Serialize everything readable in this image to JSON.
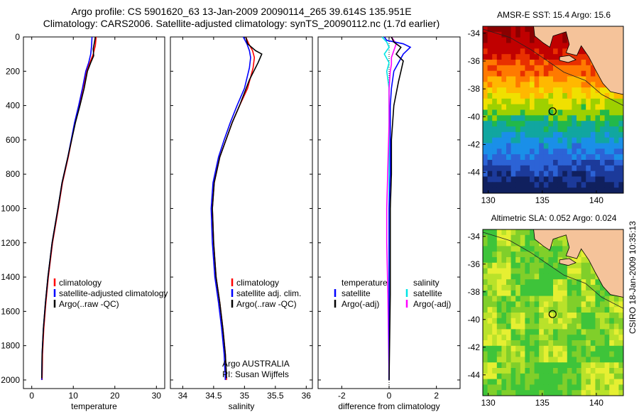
{
  "title_line1": "Argo profile: CS 5901620_63 13-Jan-2009 20090114_265 39.614S 135.951E",
  "title_line2": "Climatology: CARS2006. Satellite-adjusted climatology: synTS_20090112.nc (1.7d earlier)",
  "side_note": "CSIRO 18-Jan-2009 10:35:13",
  "colors": {
    "climatology": "#ff0000",
    "satellite": "#0000ff",
    "argo": "#000000",
    "sal_satellite": "#00e5e5",
    "sal_argo": "#ff00ff"
  },
  "chart_data": [
    {
      "type": "line",
      "xlabel": "temperature",
      "ylabel": "",
      "xlim": [
        -2,
        32
      ],
      "ylim": [
        2050,
        0
      ],
      "xticks": [
        "0",
        "10",
        "20",
        "30"
      ],
      "yticks": [
        "0",
        "200",
        "400",
        "600",
        "800",
        "1000",
        "1200",
        "1400",
        "1600",
        "1800",
        "2000"
      ],
      "legend": [
        "climatology",
        "satellite-adjusted climatology",
        "Argo(..raw -QC)"
      ],
      "legend_position": "lower-middle",
      "series": [
        {
          "name": "climatology",
          "x": [
            15.5,
            15.3,
            14.8,
            14.0,
            13.2,
            12.3,
            11.4,
            10.4,
            9.6,
            8.8,
            7.4,
            6.4,
            5.0,
            4.0,
            3.4,
            2.9,
            2.6,
            2.5
          ],
          "y": [
            0,
            50,
            100,
            150,
            200,
            300,
            400,
            500,
            600,
            700,
            850,
            1000,
            1200,
            1400,
            1550,
            1700,
            1850,
            2000
          ]
        },
        {
          "name": "satellite-adjusted climatology",
          "x": [
            14.5,
            14.4,
            14.2,
            13.7,
            13.0,
            12.2,
            11.3,
            10.3,
            9.5,
            8.7,
            7.3,
            6.3,
            4.9,
            3.9,
            3.3,
            2.8,
            2.5,
            2.4
          ],
          "y": [
            0,
            50,
            100,
            150,
            200,
            300,
            400,
            500,
            600,
            700,
            850,
            1000,
            1200,
            1400,
            1550,
            1700,
            1850,
            2000
          ]
        },
        {
          "name": "Argo(..raw -QC)",
          "x": [
            15.3,
            15.1,
            14.8,
            14.9,
            14.2,
            13.4,
            12.6,
            11.6,
            10.5,
            9.6,
            8.7,
            7.3,
            6.3,
            4.9,
            3.9,
            3.3,
            2.8,
            2.5,
            2.4
          ],
          "y": [
            0,
            30,
            70,
            110,
            150,
            200,
            300,
            400,
            500,
            600,
            700,
            850,
            1000,
            1200,
            1400,
            1550,
            1700,
            1850,
            1990
          ]
        }
      ]
    },
    {
      "type": "line",
      "xlabel": "salinity",
      "xlim": [
        33.8,
        36.1
      ],
      "ylim": [
        2050,
        0
      ],
      "xticks": [
        "34",
        "34.5",
        "35",
        "35.5",
        "36"
      ],
      "legend": [
        "climatology",
        "satellite adj. clim.",
        "Argo(..raw -QC)"
      ],
      "legend_position": "lower-right",
      "annotation": [
        "Argo AUSTRALIA",
        "PI: Susan Wijffels"
      ],
      "series": [
        {
          "name": "climatology",
          "x": [
            35.02,
            35.07,
            35.13,
            35.16,
            35.14,
            35.05,
            34.92,
            34.8,
            34.7,
            34.6,
            34.51,
            34.48,
            34.5,
            34.54,
            34.6,
            34.65,
            34.69,
            34.71
          ],
          "y": [
            0,
            40,
            80,
            120,
            180,
            300,
            400,
            500,
            600,
            700,
            850,
            1000,
            1200,
            1400,
            1550,
            1700,
            1850,
            2000
          ]
        },
        {
          "name": "satellite adj. clim.",
          "x": [
            34.98,
            35.04,
            35.08,
            35.1,
            35.08,
            35.0,
            34.88,
            34.77,
            34.67,
            34.58,
            34.49,
            34.46,
            34.48,
            34.52,
            34.58,
            34.63,
            34.67,
            34.69
          ],
          "y": [
            0,
            40,
            80,
            120,
            180,
            300,
            400,
            500,
            600,
            700,
            850,
            1000,
            1200,
            1400,
            1550,
            1700,
            1850,
            2000
          ]
        },
        {
          "name": "Argo(..raw -QC)",
          "x": [
            35.02,
            35.05,
            35.18,
            35.28,
            35.22,
            35.08,
            34.92,
            34.8,
            34.7,
            34.6,
            34.51,
            34.48,
            34.5,
            34.54,
            34.6,
            34.65,
            34.69,
            34.71
          ],
          "y": [
            0,
            40,
            80,
            100,
            150,
            250,
            400,
            500,
            600,
            700,
            850,
            1000,
            1200,
            1400,
            1550,
            1700,
            1850,
            1990
          ]
        }
      ]
    },
    {
      "type": "line",
      "xlabel": "difference from climatology",
      "xlim": [
        -3,
        3
      ],
      "ylim": [
        2050,
        0
      ],
      "xticks": [
        "-2",
        "0",
        "2"
      ],
      "legend": [
        "temperature",
        "satellite",
        "Argo(-adj)",
        "salinity",
        "satellite",
        "Argo(-adj)"
      ],
      "legend_position": "lower",
      "series": [
        {
          "name": "satellite",
          "x": [
            -0.2,
            -0.1,
            0.6,
            0.9,
            0.6,
            0.4,
            0.2,
            0.1,
            0.05,
            0.05,
            0.05,
            0.0,
            0.0,
            0.0,
            0.0
          ],
          "y": [
            0,
            20,
            40,
            60,
            100,
            150,
            200,
            300,
            400,
            600,
            800,
            1000,
            1200,
            1500,
            2000
          ]
        },
        {
          "name": "Argo(-adj)",
          "x": [
            0.1,
            0.2,
            0.5,
            0.3,
            0.6,
            0.5,
            0.4,
            0.3,
            0.2,
            0.15,
            0.1,
            0.1,
            0.05,
            0.05,
            0.0
          ],
          "y": [
            0,
            30,
            60,
            100,
            140,
            200,
            260,
            330,
            400,
            500,
            600,
            800,
            1000,
            1500,
            2000
          ]
        },
        {
          "name": "satellite",
          "x": [
            -0.3,
            -0.1,
            0.0,
            -0.2,
            0.0,
            -0.1,
            0.0,
            0.0,
            0.0,
            0.0,
            0.0,
            0.0
          ],
          "y": [
            0,
            30,
            60,
            100,
            150,
            200,
            300,
            400,
            600,
            800,
            1000,
            2000
          ]
        },
        {
          "name": "Argo(-adj)",
          "x": [
            0.1,
            0.3,
            0.2,
            0.1,
            0.1,
            0.05,
            0.0,
            0.0,
            -0.1,
            -0.1,
            -0.05,
            0.0
          ],
          "y": [
            0,
            40,
            80,
            120,
            160,
            200,
            300,
            500,
            1000,
            1200,
            1500,
            2000
          ]
        }
      ]
    }
  ],
  "maps": [
    {
      "title": "AMSR-E SST: 15.4 Argo: 15.6",
      "xticks": [
        "130",
        "135",
        "140"
      ],
      "yticks": [
        "-34",
        "-36",
        "-38",
        "-40",
        "-42",
        "-44"
      ],
      "xlim": [
        129.5,
        142.5
      ],
      "ylim": [
        -45.5,
        -33.5
      ],
      "marker_lon": 135.951,
      "marker_lat": -39.614
    },
    {
      "title": "Altimetric SLA: 0.052 Argo: 0.024",
      "xticks": [
        "130",
        "135",
        "140"
      ],
      "yticks": [
        "-34",
        "-36",
        "-38",
        "-40",
        "-42",
        "-44"
      ],
      "xlim": [
        129.5,
        142.5
      ],
      "ylim": [
        -45.5,
        -33.5
      ],
      "marker_lon": 135.951,
      "marker_lat": -39.614
    }
  ]
}
